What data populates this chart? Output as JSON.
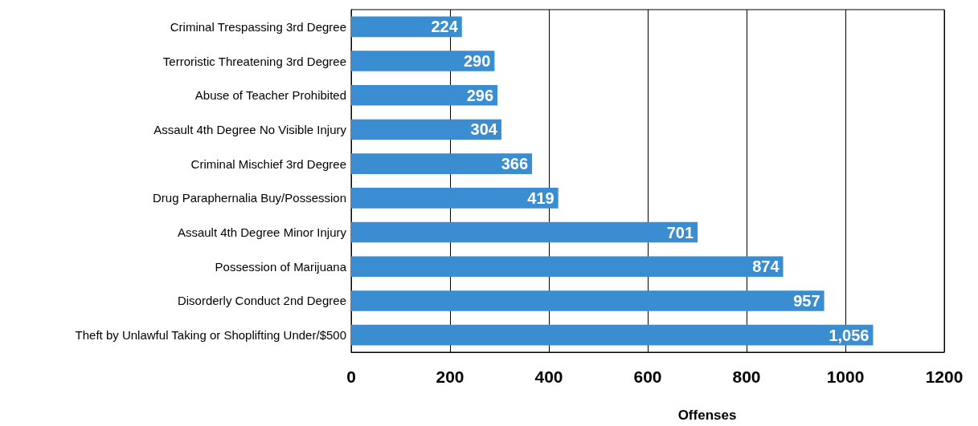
{
  "chart_data": {
    "type": "bar",
    "orientation": "horizontal",
    "xlabel": "Offenses",
    "categories": [
      "Criminal Trespassing 3rd Degree",
      "Terroristic Threatening 3rd Degree",
      "Abuse of Teacher Prohibited",
      "Assault 4th Degree No Visible Injury",
      "Criminal Mischief 3rd Degree",
      "Drug Paraphernalia Buy/Possession",
      "Assault 4th Degree Minor Injury",
      "Possession of Marijuana",
      "Disorderly Conduct 2nd Degree",
      "Theft by Unlawful Taking or Shoplifting Under/$500"
    ],
    "values": [
      224,
      290,
      296,
      304,
      366,
      419,
      701,
      874,
      957,
      1056
    ],
    "value_labels": [
      "224",
      "290",
      "296",
      "304",
      "366",
      "419",
      "701",
      "874",
      "957",
      "1,056"
    ],
    "color": "#398dd0",
    "xlim": [
      0,
      1200
    ],
    "xticks": [
      0,
      200,
      400,
      600,
      800,
      1000,
      1200
    ],
    "grid": "x"
  }
}
